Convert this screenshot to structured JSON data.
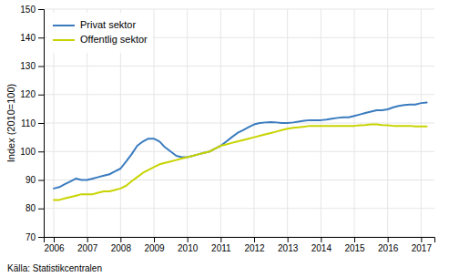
{
  "chart_data": {
    "type": "line",
    "ylabel": "Index (2010=100)",
    "annotations": [
      "Källa: Statistikcentralen"
    ],
    "x": [
      2006.0,
      2006.17,
      2006.33,
      2006.5,
      2006.67,
      2006.83,
      2007.0,
      2007.17,
      2007.33,
      2007.5,
      2007.67,
      2007.83,
      2008.0,
      2008.17,
      2008.33,
      2008.5,
      2008.67,
      2008.83,
      2009.0,
      2009.17,
      2009.33,
      2009.5,
      2009.67,
      2009.83,
      2010.0,
      2010.17,
      2010.33,
      2010.5,
      2010.67,
      2010.83,
      2011.0,
      2011.17,
      2011.33,
      2011.5,
      2011.67,
      2011.83,
      2012.0,
      2012.17,
      2012.33,
      2012.5,
      2012.67,
      2012.83,
      2013.0,
      2013.17,
      2013.33,
      2013.5,
      2013.67,
      2013.83,
      2014.0,
      2014.17,
      2014.33,
      2014.5,
      2014.67,
      2014.83,
      2015.0,
      2015.17,
      2015.33,
      2015.5,
      2015.67,
      2015.83,
      2016.0,
      2016.17,
      2016.33,
      2016.5,
      2016.67,
      2016.83,
      2017.0,
      2017.17
    ],
    "series": [
      {
        "name": "Privat sektor",
        "color": "#3a7bbf",
        "values": [
          87.0,
          87.5,
          88.5,
          89.5,
          90.5,
          90.0,
          90.0,
          90.5,
          91.0,
          91.5,
          92.0,
          93.0,
          94.0,
          96.5,
          99.0,
          102.0,
          103.5,
          104.5,
          104.5,
          103.5,
          101.5,
          100.0,
          98.5,
          98.0,
          98.0,
          98.5,
          99.0,
          99.5,
          100.0,
          101.0,
          102.0,
          103.5,
          105.0,
          106.5,
          107.5,
          108.5,
          109.5,
          110.0,
          110.2,
          110.3,
          110.2,
          110.0,
          110.0,
          110.2,
          110.5,
          110.8,
          111.0,
          111.0,
          111.0,
          111.2,
          111.5,
          111.8,
          112.0,
          112.0,
          112.5,
          113.0,
          113.5,
          114.0,
          114.5,
          114.5,
          114.8,
          115.5,
          116.0,
          116.3,
          116.5,
          116.5,
          117.0,
          117.2
        ]
      },
      {
        "name": "Offentlig sektor",
        "color": "#c8d400",
        "values": [
          83.0,
          83.0,
          83.5,
          84.0,
          84.5,
          85.0,
          85.0,
          85.0,
          85.5,
          86.0,
          86.0,
          86.5,
          87.0,
          88.0,
          89.5,
          91.0,
          92.5,
          93.5,
          94.5,
          95.5,
          96.0,
          96.5,
          97.0,
          97.5,
          98.0,
          98.5,
          99.0,
          99.5,
          100.0,
          101.0,
          102.0,
          102.5,
          103.0,
          103.5,
          104.0,
          104.5,
          105.0,
          105.5,
          106.0,
          106.5,
          107.0,
          107.5,
          108.0,
          108.3,
          108.5,
          108.7,
          109.0,
          109.0,
          109.0,
          109.0,
          109.0,
          109.0,
          109.0,
          109.0,
          109.0,
          109.2,
          109.3,
          109.5,
          109.5,
          109.3,
          109.2,
          109.0,
          109.0,
          109.0,
          109.0,
          108.8,
          108.8,
          108.8
        ]
      }
    ],
    "xlim": [
      2005.7,
      2017.4
    ],
    "xticks": [
      2006,
      2007,
      2008,
      2009,
      2010,
      2011,
      2012,
      2013,
      2014,
      2015,
      2016,
      2017
    ],
    "ylim": [
      70,
      150
    ],
    "yticks": [
      70,
      80,
      90,
      100,
      110,
      120,
      130,
      140,
      150
    ],
    "grid": true,
    "legend": "upper left"
  }
}
